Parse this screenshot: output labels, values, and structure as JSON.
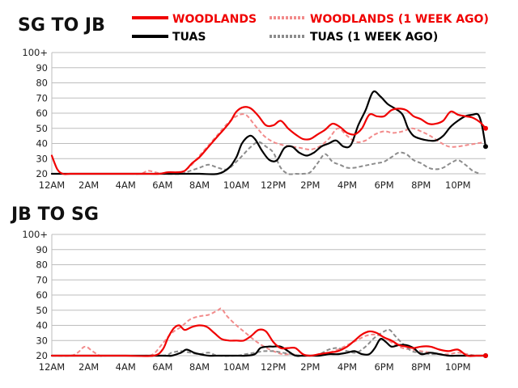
{
  "colors": {
    "woodlands": "#f00000",
    "woodlands_prev": "#f28b8b",
    "tuas": "#000000",
    "tuas_prev": "#8c8c8c",
    "grid": "#bdbdbd",
    "text": "#111111"
  },
  "legend": [
    {
      "name": "WOODLANDS",
      "color": "#f00000",
      "dashed": false
    },
    {
      "name": "WOODLANDS (1 WEEK AGO)",
      "color": "#f28b8b",
      "dashed": true
    },
    {
      "name": "TUAS",
      "color": "#000000",
      "dashed": false
    },
    {
      "name": "TUAS (1 WEEK AGO)",
      "color": "#8c8c8c",
      "dashed": true
    }
  ],
  "chart_data": [
    {
      "type": "line",
      "title": "SG TO JB",
      "xlabel": "",
      "ylabel": "",
      "x_unit": "hour of day",
      "xlim": [
        0,
        23.5
      ],
      "ylim": [
        20,
        100
      ],
      "y_ticks": [
        20,
        30,
        40,
        50,
        60,
        70,
        80,
        90,
        100
      ],
      "y_tick_labels": [
        "20",
        "30",
        "40",
        "50",
        "60",
        "70",
        "80",
        "90",
        "100+"
      ],
      "x_ticks": [
        0,
        2,
        4,
        6,
        8,
        10,
        12,
        14,
        16,
        18,
        20,
        22
      ],
      "x_tick_labels": [
        "12AM",
        "2AM",
        "4AM",
        "6AM",
        "8AM",
        "10AM",
        "12PM",
        "2PM",
        "4PM",
        "6PM",
        "8PM",
        "10PM"
      ],
      "grid": true,
      "series": [
        {
          "name": "WOODLANDS",
          "key": "woodlands",
          "dashed": false,
          "x": [
            0,
            0.3,
            0.6,
            1,
            2,
            3,
            4,
            5,
            5.8,
            6.3,
            6.8,
            7.2,
            7.6,
            8,
            8.5,
            9,
            9.3,
            9.7,
            10,
            10.4,
            10.8,
            11.2,
            11.6,
            12,
            12.4,
            12.8,
            13.2,
            13.6,
            14,
            14.4,
            14.8,
            15.2,
            15.6,
            16,
            16.4,
            16.8,
            17.2,
            17.6,
            18,
            18.4,
            18.8,
            19.2,
            19.6,
            20,
            20.4,
            20.8,
            21.2,
            21.6,
            22,
            22.4,
            22.8,
            23.2,
            23.5
          ],
          "y": [
            32,
            23,
            20,
            20,
            20,
            20,
            20,
            20,
            20,
            21,
            21,
            22,
            27,
            31,
            38,
            45,
            49,
            55,
            61,
            64,
            63,
            58,
            52,
            52,
            55,
            50,
            46,
            43,
            43,
            46,
            49,
            53,
            51,
            47,
            46,
            50,
            59,
            58,
            58,
            62,
            63,
            62,
            58,
            56,
            53,
            53,
            55,
            61,
            59,
            58,
            57,
            54,
            50
          ],
          "end_marker": true
        },
        {
          "name": "WOODLANDS (1 WEEK AGO)",
          "key": "woodlands_prev",
          "dashed": true,
          "x": [
            0,
            2,
            4,
            4.8,
            5.2,
            5.6,
            6,
            6.5,
            7,
            7.5,
            8,
            8.5,
            9,
            9.5,
            10,
            10.5,
            11,
            11.5,
            12,
            12.5,
            13,
            13.5,
            14,
            14.5,
            15,
            15.5,
            16,
            16.5,
            17,
            17.5,
            18,
            18.5,
            19,
            19.5,
            20,
            20.5,
            21,
            21.5,
            22,
            22.5,
            23,
            23.5
          ],
          "y": [
            20,
            20,
            20,
            20,
            22,
            21,
            20,
            20,
            21,
            25,
            32,
            39,
            46,
            53,
            58,
            59,
            52,
            45,
            41,
            39,
            38,
            37,
            36,
            38,
            43,
            50,
            45,
            41,
            42,
            46,
            48,
            47,
            48,
            50,
            48,
            45,
            41,
            38,
            38,
            39,
            40,
            41
          ],
          "end_marker": false
        },
        {
          "name": "TUAS",
          "key": "tuas",
          "dashed": false,
          "x": [
            0,
            2,
            4,
            6,
            7,
            8,
            9,
            9.6,
            10,
            10.3,
            10.7,
            11,
            11.4,
            11.8,
            12.2,
            12.6,
            13,
            13.4,
            13.8,
            14.2,
            14.6,
            15,
            15.4,
            15.8,
            16.2,
            16.6,
            17,
            17.4,
            17.8,
            18.2,
            18.6,
            19,
            19.3,
            19.6,
            20,
            20.4,
            20.8,
            21.2,
            21.6,
            22,
            22.4,
            22.8,
            23.1,
            23.3,
            23.5
          ],
          "y": [
            20,
            20,
            20,
            20,
            20,
            20,
            20,
            24,
            31,
            40,
            45,
            43,
            35,
            29,
            29,
            37,
            38,
            34,
            32,
            34,
            38,
            40,
            42,
            38,
            39,
            52,
            62,
            74,
            71,
            66,
            63,
            59,
            50,
            45,
            43,
            42,
            42,
            45,
            51,
            55,
            58,
            59,
            59,
            52,
            38
          ],
          "end_marker": true
        },
        {
          "name": "TUAS (1 WEEK AGO)",
          "key": "tuas_prev",
          "dashed": true,
          "x": [
            0,
            2,
            4,
            6,
            7,
            7.5,
            8,
            8.5,
            9,
            9.5,
            10,
            10.4,
            10.8,
            11.2,
            11.6,
            12,
            12.4,
            12.8,
            13.2,
            13.6,
            14,
            14.4,
            14.8,
            15.2,
            15.6,
            16,
            16.4,
            16.8,
            17.2,
            17.6,
            18,
            18.4,
            18.8,
            19.2,
            19.6,
            20,
            20.4,
            20.8,
            21.2,
            21.6,
            22,
            22.4,
            22.8,
            23.2
          ],
          "y": [
            20,
            20,
            20,
            20,
            20,
            22,
            24,
            26,
            24,
            23,
            28,
            33,
            38,
            41,
            38,
            34,
            24,
            20,
            20,
            20,
            21,
            27,
            33,
            28,
            26,
            24,
            24,
            25,
            26,
            27,
            28,
            31,
            34,
            33,
            29,
            27,
            24,
            23,
            24,
            27,
            29,
            26,
            22,
            20
          ],
          "end_marker": false
        }
      ]
    },
    {
      "type": "line",
      "title": "JB TO SG",
      "xlabel": "",
      "ylabel": "",
      "x_unit": "hour of day",
      "xlim": [
        0,
        23.5
      ],
      "ylim": [
        20,
        100
      ],
      "y_ticks": [
        20,
        30,
        40,
        50,
        60,
        70,
        80,
        90,
        100
      ],
      "y_tick_labels": [
        "20",
        "30",
        "40",
        "50",
        "60",
        "70",
        "80",
        "90",
        "100+"
      ],
      "x_ticks": [
        0,
        2,
        4,
        6,
        8,
        10,
        12,
        14,
        16,
        18,
        20,
        22
      ],
      "x_tick_labels": [
        "12AM",
        "2AM",
        "4AM",
        "6AM",
        "8AM",
        "10AM",
        "12PM",
        "2PM",
        "4PM",
        "6PM",
        "8PM",
        "10PM"
      ],
      "grid": true,
      "series": [
        {
          "name": "WOODLANDS",
          "key": "woodlands",
          "dashed": false,
          "x": [
            0,
            2,
            4,
            5.5,
            6,
            6.3,
            6.6,
            6.9,
            7.2,
            7.6,
            8,
            8.4,
            8.8,
            9.2,
            9.6,
            10,
            10.4,
            10.8,
            11.2,
            11.6,
            12,
            12.4,
            12.8,
            13.2,
            13.6,
            14,
            14.5,
            15,
            15.5,
            16,
            16.4,
            16.8,
            17.2,
            17.6,
            18,
            18.4,
            18.8,
            19.2,
            19.6,
            20,
            20.5,
            21,
            21.5,
            22,
            22.5,
            23,
            23.5
          ],
          "y": [
            20,
            20,
            20,
            20,
            24,
            32,
            38,
            40,
            37,
            39,
            40,
            39,
            35,
            31,
            30,
            30,
            30,
            33,
            37,
            36,
            29,
            25,
            25,
            25,
            21,
            20,
            21,
            22,
            23,
            26,
            30,
            34,
            36,
            35,
            32,
            30,
            27,
            26,
            25,
            26,
            26,
            24,
            23,
            24,
            20,
            20,
            20
          ],
          "end_marker": true
        },
        {
          "name": "WOODLANDS (1 WEEK AGO)",
          "key": "woodlands_prev",
          "dashed": true,
          "x": [
            0,
            1,
            1.4,
            1.8,
            2.2,
            2.6,
            3,
            4,
            5,
            5.5,
            6,
            6.5,
            7,
            7.5,
            8,
            8.5,
            9,
            9.2,
            9.5,
            10,
            10.5,
            11,
            11.5,
            12,
            12.5,
            13,
            13.5,
            14,
            14.5,
            15,
            15.5,
            16,
            16.5,
            17,
            17.5,
            18,
            18.5,
            19,
            19.5,
            20,
            20.5,
            21,
            21.5,
            22,
            22.5,
            23,
            23.5
          ],
          "y": [
            20,
            20,
            22,
            26,
            23,
            20,
            20,
            20,
            20,
            21,
            28,
            35,
            39,
            44,
            46,
            47,
            50,
            51,
            46,
            40,
            35,
            30,
            26,
            23,
            21,
            21,
            20,
            20,
            21,
            22,
            24,
            27,
            30,
            33,
            34,
            32,
            28,
            25,
            24,
            23,
            22,
            21,
            21,
            22,
            21,
            20,
            20
          ],
          "end_marker": false
        },
        {
          "name": "TUAS",
          "key": "tuas",
          "dashed": false,
          "x": [
            0,
            2,
            4,
            6,
            6.5,
            7,
            7.3,
            7.7,
            8,
            8.5,
            9,
            9.5,
            10,
            10.5,
            11,
            11.3,
            11.7,
            12,
            12.4,
            12.8,
            13.2,
            13.6,
            14,
            14.5,
            15,
            15.5,
            16,
            16.4,
            16.8,
            17.2,
            17.5,
            17.8,
            18.1,
            18.4,
            18.8,
            19.2,
            19.6,
            20,
            20.5,
            21,
            21.5,
            22,
            22.5,
            23,
            23.5
          ],
          "y": [
            20,
            20,
            20,
            20,
            20,
            22,
            24,
            22,
            21,
            20,
            20,
            20,
            20,
            20,
            21,
            25,
            26,
            26,
            26,
            23,
            20,
            20,
            20,
            20,
            21,
            21,
            22,
            23,
            21,
            21,
            25,
            31,
            29,
            26,
            27,
            27,
            25,
            21,
            22,
            21,
            20,
            20,
            20,
            20,
            20
          ],
          "end_marker": true
        },
        {
          "name": "TUAS (1 WEEK AGO)",
          "key": "tuas_prev",
          "dashed": true,
          "x": [
            0,
            2,
            4,
            6,
            6.5,
            7,
            7.5,
            8,
            8.5,
            9,
            10,
            10.5,
            11,
            11.5,
            12,
            12.5,
            13,
            13.5,
            14,
            14.5,
            15,
            15.5,
            16,
            16.5,
            17,
            17.5,
            18,
            18.3,
            18.6,
            19,
            19.5,
            20,
            20.5,
            21,
            21.5,
            22,
            23,
            23.5
          ],
          "y": [
            20,
            20,
            20,
            20,
            22,
            23,
            22,
            21,
            22,
            20,
            20,
            21,
            22,
            23,
            23,
            22,
            21,
            20,
            20,
            21,
            24,
            25,
            23,
            22,
            26,
            32,
            36,
            37,
            33,
            28,
            23,
            22,
            21,
            21,
            20,
            20,
            20,
            20
          ],
          "end_marker": false
        }
      ]
    }
  ]
}
